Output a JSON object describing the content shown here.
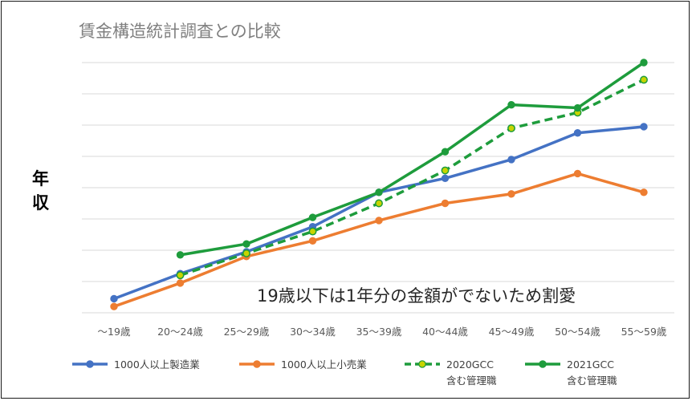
{
  "chart_data": {
    "type": "line",
    "title": "賃金構造統計調査との比較",
    "ylabel": "年収",
    "ylabel_chars": [
      "年",
      "収"
    ],
    "xlabel": "",
    "categories": [
      "～19歳",
      "20～24歳",
      "25～29歳",
      "30～34歳",
      "35～39歳",
      "40～44歳",
      "45～49歳",
      "50～54歳",
      "55～59歳"
    ],
    "ylim": [
      0,
      8
    ],
    "yticks_shown": false,
    "grid": true,
    "legend_position": "bottom",
    "annotation": "19歳以下は1年分の金額がでないため割愛",
    "series": [
      {
        "name": "1000人以上製造業",
        "label_lines": [
          "1000人以上製造業"
        ],
        "color": "#4472c4",
        "dashed": false,
        "marker_fill": "#4472c4",
        "values": [
          0.45,
          1.25,
          1.95,
          2.75,
          3.85,
          4.3,
          4.9,
          5.75,
          5.95
        ]
      },
      {
        "name": "1000人以上小売業",
        "label_lines": [
          "1000人以上小売業"
        ],
        "color": "#ed7d31",
        "dashed": false,
        "marker_fill": "#ed7d31",
        "values": [
          0.2,
          0.95,
          1.8,
          2.3,
          2.95,
          3.5,
          3.8,
          4.45,
          3.85
        ]
      },
      {
        "name": "2020GCC 含む管理職",
        "label_lines": [
          "2020GCC",
          "含む管理職"
        ],
        "color": "#1e9c3c",
        "dashed": true,
        "marker_fill": "#c8d400",
        "values": [
          null,
          1.2,
          1.9,
          2.6,
          3.5,
          4.55,
          5.9,
          6.4,
          7.45
        ]
      },
      {
        "name": "2021GCC 含む管理職",
        "label_lines": [
          "2021GCC",
          "含む管理職"
        ],
        "color": "#1e9c3c",
        "dashed": false,
        "marker_fill": "#1e9c3c",
        "values": [
          null,
          1.85,
          2.2,
          3.05,
          3.85,
          5.15,
          6.65,
          6.55,
          8.0
        ]
      }
    ]
  }
}
